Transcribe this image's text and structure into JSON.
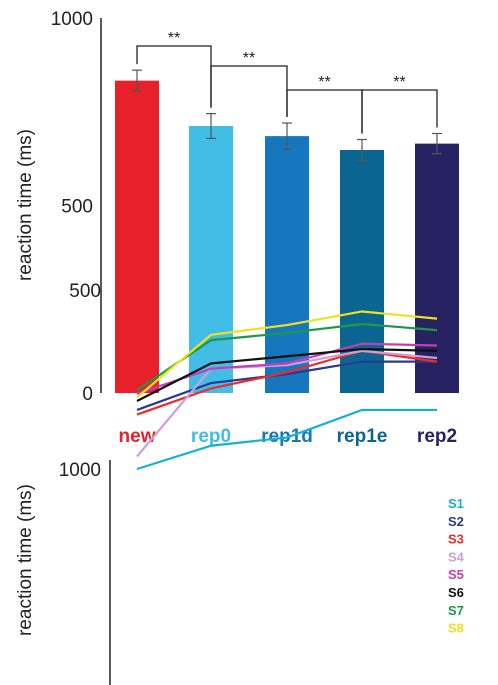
{
  "chart_data": [
    {
      "type": "bar",
      "ylabel": "reaction time (ms)",
      "ylim": [
        0,
        1000
      ],
      "yticks": [
        0,
        500,
        1000
      ],
      "grid": false,
      "categories": [
        "new",
        "rep0",
        "rep1d",
        "rep1e",
        "rep2"
      ],
      "values": [
        833,
        712,
        685,
        648,
        665
      ],
      "errors": [
        28,
        33,
        35,
        28,
        27
      ],
      "colors": [
        "#e8202a",
        "#42bde6",
        "#1677be",
        "#0a6690",
        "#262262"
      ],
      "significance": [
        {
          "from": 0,
          "to": 1,
          "label": "**"
        },
        {
          "from": 1,
          "to": 2,
          "label": "**"
        },
        {
          "from": 2,
          "to": 3,
          "label": "**"
        },
        {
          "from": 3,
          "to": 4,
          "label": "**"
        }
      ]
    },
    {
      "type": "line",
      "ylabel": "reaction time (ms)",
      "yticks": [
        500,
        1000
      ],
      "x": [
        "new",
        "rep0",
        "rep1d",
        "rep1e",
        "rep2"
      ],
      "legend": "right",
      "series": [
        {
          "name": "S1",
          "color": "#16b1d2",
          "values": [
            1000,
            935,
            912,
            835,
            835
          ]
        },
        {
          "name": "S2",
          "color": "#2b3990",
          "values": [
            835,
            760,
            735,
            700,
            700
          ]
        },
        {
          "name": "S3",
          "color": "#ee2a2a",
          "values": [
            848,
            775,
            730,
            670,
            700
          ]
        },
        {
          "name": "S4",
          "color": "#c9a1d8",
          "values": [
            965,
            720,
            710,
            670,
            690
          ]
        },
        {
          "name": "S5",
          "color": "#c03fb8",
          "values": [
            790,
            720,
            705,
            650,
            655
          ]
        },
        {
          "name": "S6",
          "color": "#111111",
          "values": [
            810,
            705,
            685,
            665,
            670
          ]
        },
        {
          "name": "S7",
          "color": "#1a9a48",
          "values": [
            780,
            640,
            620,
            595,
            612
          ]
        },
        {
          "name": "S8",
          "color": "#f0e020",
          "values": [
            800,
            625,
            598,
            560,
            580
          ]
        }
      ]
    }
  ]
}
